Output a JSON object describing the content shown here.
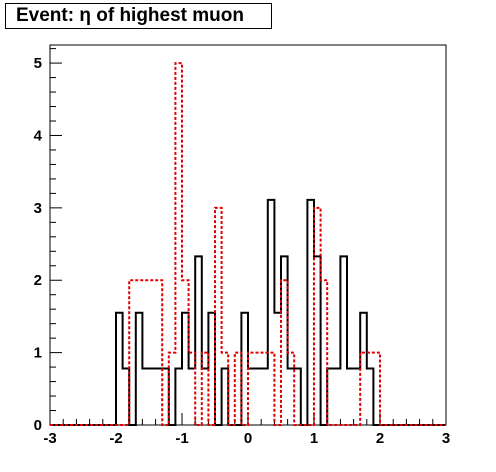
{
  "chart_data": {
    "type": "histogram",
    "title": "Event: η of highest muon",
    "xlabel": "",
    "ylabel": "",
    "xlim": [
      -3,
      3
    ],
    "ylim": [
      0,
      5.25
    ],
    "bin_width": 0.1,
    "bin_start": -3.0,
    "xticks": [
      "-3",
      "-2",
      "-1",
      "0",
      "1",
      "2",
      "3"
    ],
    "yticks": [
      "0",
      "1",
      "2",
      "3",
      "4",
      "5"
    ],
    "series": [
      {
        "color": "#000000",
        "style": "solid",
        "values": [
          0,
          0,
          0,
          0,
          0,
          0,
          0,
          0,
          0,
          0,
          1.55,
          0.78,
          0,
          1.55,
          0.78,
          0.78,
          0.78,
          0.78,
          0,
          0.78,
          1.55,
          0.78,
          2.33,
          0.78,
          1.55,
          0,
          0.78,
          0,
          0,
          1.55,
          0.78,
          0.78,
          0.78,
          3.11,
          1.55,
          2.33,
          0.78,
          0.78,
          0,
          3.11,
          2.33,
          0,
          0.78,
          0.78,
          2.33,
          0.78,
          0.78,
          1.55,
          0.78,
          0,
          0,
          0,
          0,
          0,
          0,
          0,
          0,
          0,
          0,
          0
        ]
      },
      {
        "color": "#e00000",
        "style": "dashed",
        "values": [
          0,
          0,
          0,
          0,
          0,
          0,
          0,
          0,
          0,
          0,
          0,
          0,
          2.0,
          2.0,
          2.0,
          2.0,
          2.0,
          0,
          1.0,
          5.0,
          2.0,
          1.0,
          0,
          1.0,
          0,
          3.0,
          1.0,
          0,
          1.0,
          0,
          1.0,
          1.0,
          1.0,
          1.0,
          0,
          2.0,
          1.0,
          0,
          0,
          0,
          3.0,
          2.0,
          0,
          0,
          0,
          0,
          0,
          1.0,
          1.0,
          1.0,
          0,
          0,
          0,
          0,
          0,
          0,
          0,
          0,
          0,
          0
        ]
      }
    ]
  }
}
